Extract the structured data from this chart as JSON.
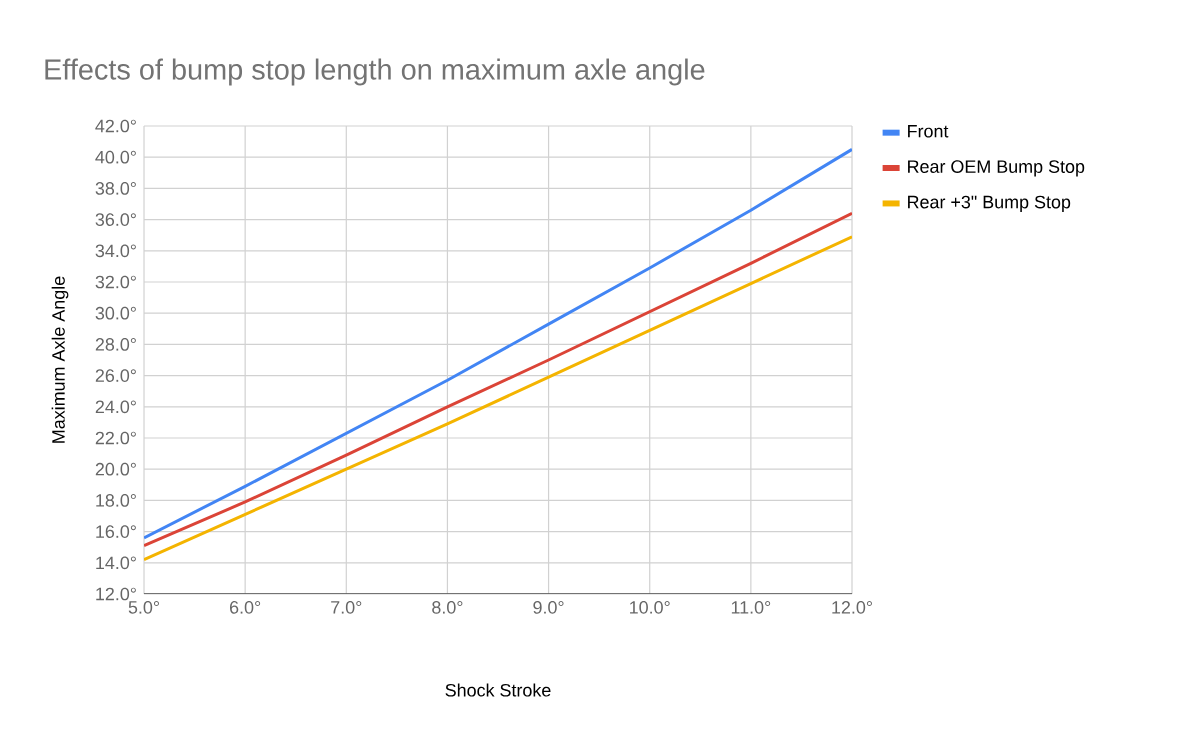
{
  "chart_data": {
    "type": "line",
    "title": "Effects of bump stop length on maximum axle angle",
    "xlabel": "Shock Stroke",
    "ylabel": "Maximum Axle Angle",
    "x": [
      5,
      6,
      7,
      8,
      9,
      10,
      11,
      12
    ],
    "series": [
      {
        "name": "Front",
        "color": "#4285f4",
        "values": [
          15.6,
          18.9,
          22.3,
          25.7,
          29.3,
          32.9,
          36.6,
          40.5
        ]
      },
      {
        "name": "Rear OEM Bump Stop",
        "color": "#db4437",
        "values": [
          15.1,
          17.9,
          20.9,
          24.0,
          27.0,
          30.1,
          33.2,
          36.4
        ]
      },
      {
        "name": "Rear +3\" Bump Stop",
        "color": "#f4b400",
        "values": [
          14.2,
          17.1,
          20.0,
          22.9,
          25.9,
          28.9,
          31.9,
          34.9
        ]
      }
    ],
    "xlim": [
      5,
      12
    ],
    "xticks": [
      {
        "value": 5,
        "label": "5.0°"
      },
      {
        "value": 6,
        "label": "6.0°"
      },
      {
        "value": 7,
        "label": "7.0°"
      },
      {
        "value": 8,
        "label": "8.0°"
      },
      {
        "value": 9,
        "label": "9.0°"
      },
      {
        "value": 10,
        "label": "10.0°"
      },
      {
        "value": 11,
        "label": "11.0°"
      },
      {
        "value": 12,
        "label": "12.0°"
      }
    ],
    "ylim": [
      12,
      42
    ],
    "yticks": [
      {
        "value": 12,
        "label": "12.0°"
      },
      {
        "value": 14,
        "label": "14.0°"
      },
      {
        "value": 16,
        "label": "16.0°"
      },
      {
        "value": 18,
        "label": "18.0°"
      },
      {
        "value": 20,
        "label": "20.0°"
      },
      {
        "value": 22,
        "label": "22.0°"
      },
      {
        "value": 24,
        "label": "24.0°"
      },
      {
        "value": 26,
        "label": "26.0°"
      },
      {
        "value": 28,
        "label": "28.0°"
      },
      {
        "value": 30,
        "label": "30.0°"
      },
      {
        "value": 32,
        "label": "32.0°"
      },
      {
        "value": 34,
        "label": "34.0°"
      },
      {
        "value": 36,
        "label": "36.0°"
      },
      {
        "value": 38,
        "label": "38.0°"
      },
      {
        "value": 40,
        "label": "40.0°"
      },
      {
        "value": 42,
        "label": "42.0°"
      }
    ],
    "grid": true,
    "legend": "right",
    "marker": "none",
    "line_style": "solid"
  }
}
